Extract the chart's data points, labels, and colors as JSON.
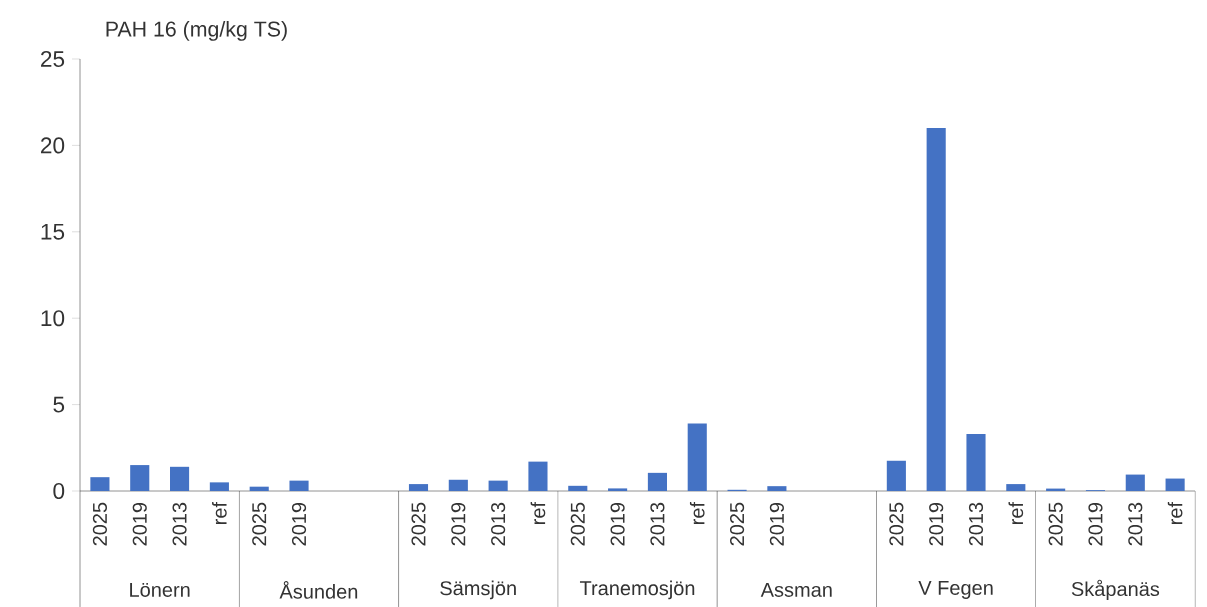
{
  "chart_data": {
    "type": "bar",
    "ylabel": "PAH 16 (mg/kg TS)",
    "categories": [
      "2025",
      "2019",
      "2013",
      "ref",
      "2025",
      "2019",
      null,
      null,
      "2025",
      "2019",
      "2013",
      "ref",
      "2025",
      "2019",
      "2013",
      "ref",
      "2025",
      "2019",
      null,
      null,
      "2025",
      "2019",
      "2013",
      "ref",
      "2025",
      "2019",
      "2013",
      "ref"
    ],
    "values": [
      0.8,
      1.5,
      1.4,
      0.5,
      0.25,
      0.6,
      null,
      null,
      0.4,
      0.65,
      0.6,
      1.7,
      0.3,
      0.15,
      1.05,
      3.9,
      0.07,
      0.28,
      null,
      null,
      1.75,
      21,
      3.3,
      0.4,
      0.14,
      0.05,
      0.95,
      0.72
    ],
    "color": "#4472c4",
    "ylim": [
      0,
      25
    ],
    "yticks": [
      0,
      5,
      10,
      15,
      20,
      25
    ],
    "annotations": [
      "Lönern",
      "Åsunden",
      "Sämsjön",
      "Tranemosjön",
      "Assman",
      "V Fegen",
      "Skåpanäs"
    ]
  }
}
